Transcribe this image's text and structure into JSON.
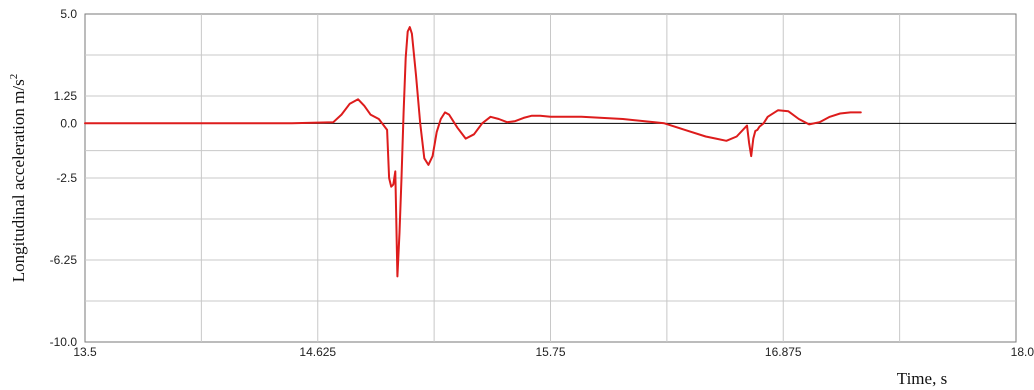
{
  "chart_data": {
    "type": "line",
    "title": "",
    "xlabel": "Time, s",
    "ylabel": "Longitudinal acceleration m/s",
    "ylabel_superscript": "2",
    "xlim": [
      13.5,
      18.0
    ],
    "ylim": [
      -10.0,
      5.0
    ],
    "x_ticks": [
      13.5,
      14.0625,
      14.625,
      15.1875,
      15.75,
      16.3125,
      16.875,
      17.4375,
      18.0
    ],
    "x_tick_labels": [
      "13.5",
      "",
      "14.625",
      "",
      "15.75",
      "",
      "16.875",
      "",
      "18.0"
    ],
    "y_ticks": [
      5.0,
      1.25,
      0.0,
      -2.5,
      -6.25,
      -10.0
    ],
    "y_tick_labels": [
      "5.0",
      "1.25",
      "0.0",
      "-2.5",
      "-6.25",
      "-10.0"
    ],
    "y_grid": [
      5.0,
      3.125,
      1.25,
      0.0,
      -1.25,
      -2.5,
      -4.375,
      -6.25,
      -8.125,
      -10.0
    ],
    "grid": true,
    "zero_line": true,
    "line_color": "#dd1c1c",
    "series": [
      {
        "name": "",
        "x": [
          13.5,
          13.7,
          13.9,
          14.1,
          14.3,
          14.5,
          14.7,
          14.74,
          14.78,
          14.82,
          14.85,
          14.88,
          14.92,
          14.96,
          14.97,
          14.98,
          14.99,
          15.0,
          15.01,
          15.02,
          15.03,
          15.04,
          15.05,
          15.06,
          15.07,
          15.08,
          15.1,
          15.12,
          15.14,
          15.16,
          15.18,
          15.2,
          15.22,
          15.24,
          15.26,
          15.3,
          15.34,
          15.38,
          15.42,
          15.46,
          15.5,
          15.54,
          15.58,
          15.62,
          15.66,
          15.7,
          15.75,
          15.8,
          15.9,
          16.0,
          16.1,
          16.2,
          16.3,
          16.4,
          16.5,
          16.55,
          16.6,
          16.65,
          16.7,
          16.71,
          16.72,
          16.73,
          16.74,
          16.75,
          16.76,
          16.78,
          16.8,
          16.85,
          16.9,
          16.95,
          17.0,
          17.05,
          17.1,
          17.15,
          17.2,
          17.25
        ],
        "y": [
          0.0,
          0.0,
          0.0,
          0.0,
          0.0,
          0.0,
          0.05,
          0.4,
          0.9,
          1.1,
          0.8,
          0.4,
          0.2,
          -0.3,
          -2.5,
          -2.9,
          -2.8,
          -2.2,
          -7.0,
          -5.0,
          -2.5,
          0.5,
          3.0,
          4.2,
          4.4,
          4.1,
          2.2,
          0.0,
          -1.6,
          -1.9,
          -1.5,
          -0.4,
          0.2,
          0.5,
          0.4,
          -0.2,
          -0.7,
          -0.5,
          0.0,
          0.3,
          0.2,
          0.05,
          0.1,
          0.25,
          0.35,
          0.35,
          0.3,
          0.3,
          0.3,
          0.25,
          0.2,
          0.1,
          0.0,
          -0.3,
          -0.6,
          -0.7,
          -0.8,
          -0.6,
          -0.1,
          -0.9,
          -1.5,
          -0.7,
          -0.35,
          -0.3,
          -0.15,
          0.0,
          0.3,
          0.6,
          0.55,
          0.2,
          -0.05,
          0.05,
          0.3,
          0.45,
          0.5,
          0.5
        ]
      }
    ]
  }
}
